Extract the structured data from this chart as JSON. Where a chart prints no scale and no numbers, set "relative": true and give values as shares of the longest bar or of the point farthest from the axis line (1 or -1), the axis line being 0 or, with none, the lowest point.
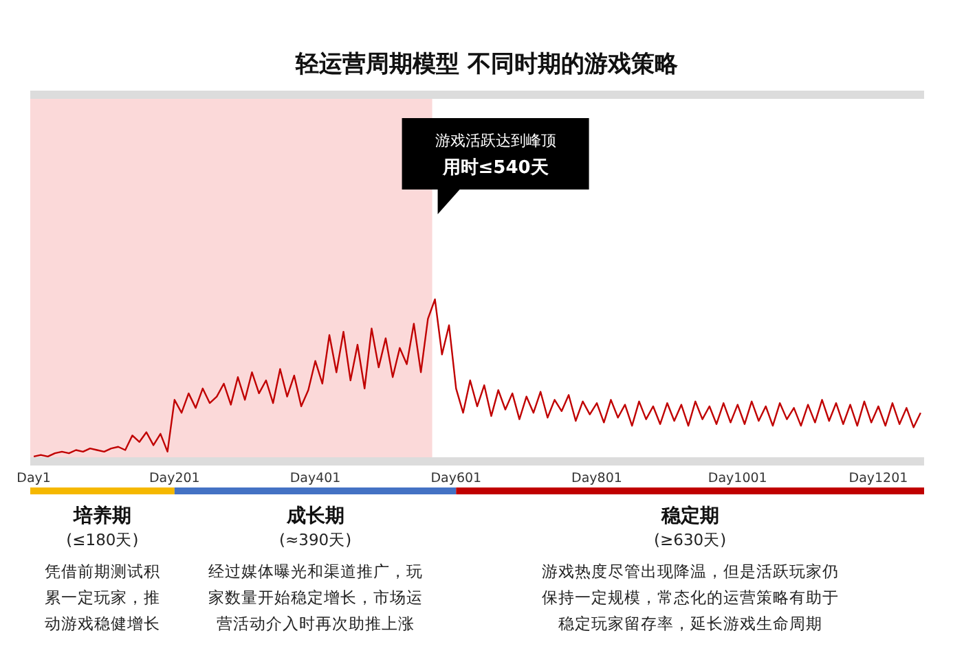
{
  "chart_data": {
    "type": "line",
    "title": "轻运营周期模型  不同时期的游戏策略",
    "relative": true,
    "categories": [
      "Day1",
      null,
      null,
      null,
      null,
      null,
      null,
      null,
      null,
      null,
      null,
      null,
      null,
      null,
      null,
      null,
      null,
      null,
      null,
      null,
      "Day201",
      null,
      null,
      null,
      null,
      null,
      null,
      null,
      null,
      null,
      null,
      null,
      null,
      null,
      null,
      null,
      null,
      null,
      null,
      null,
      "Day401",
      null,
      null,
      null,
      null,
      null,
      null,
      null,
      null,
      null,
      null,
      null,
      null,
      null,
      null,
      null,
      null,
      null,
      null,
      null,
      "Day601",
      null,
      null,
      null,
      null,
      null,
      null,
      null,
      null,
      null,
      null,
      null,
      null,
      null,
      null,
      null,
      null,
      null,
      null,
      null,
      "Day801",
      null,
      null,
      null,
      null,
      null,
      null,
      null,
      null,
      null,
      null,
      null,
      null,
      null,
      null,
      null,
      null,
      null,
      null,
      null,
      "Day1001",
      null,
      null,
      null,
      null,
      null,
      null,
      null,
      null,
      null,
      null,
      null,
      null,
      null,
      null,
      null,
      null,
      null,
      null,
      null,
      "Day1201",
      null,
      null,
      null,
      null,
      null,
      null
    ],
    "series": [
      {
        "color": "#c00000",
        "values": [
          0.03,
          0.04,
          0.03,
          0.05,
          0.06,
          0.05,
          0.07,
          0.06,
          0.08,
          0.07,
          0.06,
          0.08,
          0.09,
          0.07,
          0.16,
          0.12,
          0.18,
          0.1,
          0.17,
          0.06,
          0.38,
          0.3,
          0.42,
          0.33,
          0.45,
          0.36,
          0.4,
          0.48,
          0.35,
          0.52,
          0.38,
          0.55,
          0.42,
          0.5,
          0.36,
          0.57,
          0.4,
          0.53,
          0.34,
          0.44,
          0.62,
          0.48,
          0.78,
          0.55,
          0.8,
          0.5,
          0.72,
          0.45,
          0.82,
          0.58,
          0.76,
          0.52,
          0.7,
          0.6,
          0.85,
          0.55,
          0.88,
          1.0,
          0.66,
          0.84,
          0.45,
          0.3,
          0.5,
          0.34,
          0.47,
          0.28,
          0.44,
          0.32,
          0.42,
          0.26,
          0.4,
          0.3,
          0.43,
          0.27,
          0.38,
          0.31,
          0.41,
          0.25,
          0.37,
          0.29,
          0.36,
          0.24,
          0.38,
          0.27,
          0.35,
          0.22,
          0.37,
          0.26,
          0.34,
          0.23,
          0.36,
          0.25,
          0.35,
          0.22,
          0.37,
          0.26,
          0.34,
          0.23,
          0.36,
          0.24,
          0.35,
          0.23,
          0.37,
          0.25,
          0.34,
          0.22,
          0.36,
          0.26,
          0.33,
          0.22,
          0.35,
          0.24,
          0.38,
          0.25,
          0.36,
          0.23,
          0.35,
          0.22,
          0.37,
          0.24,
          0.34,
          0.22,
          0.36,
          0.23,
          0.33,
          0.21,
          0.3
        ]
      }
    ],
    "annotations": [
      "游戏活跃达到峰顶",
      "用时≤540天",
      "培养期",
      "成长期",
      "稳定期",
      "(≤180天)",
      "(≈390天)",
      "(≥630天)",
      "凭借前期测试积累一定玩家，推动游戏稳健增长",
      "经过媒体曝光和渠道推广，玩家数量开始稳定增长，市场运营活动介入时再次助推上涨",
      "游戏热度尽管出现降温，但是活跃玩家仍保持一定规模，常态化的运营策略有助于稳定玩家留存率，延长游戏生命周期"
    ],
    "grid": false
  }
}
